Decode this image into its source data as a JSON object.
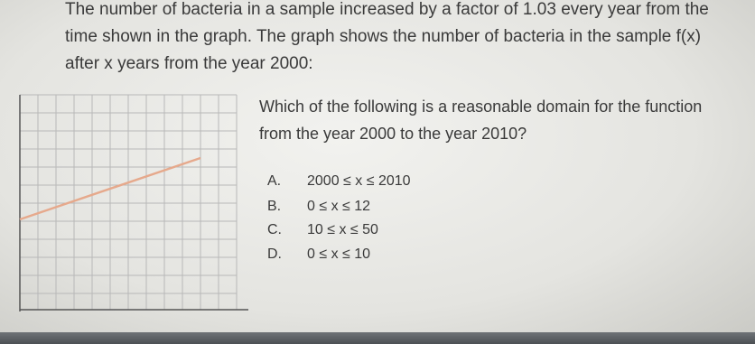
{
  "intro": [
    "The number of bacteria in a sample increased by a factor of 1.03 every year from the",
    "time shown in the graph. The graph shows the number of bacteria in the sample f(x)",
    "after x years from the year 2000:"
  ],
  "question": [
    "Which of the following is a reasonable domain for the function",
    "from the year 2000 to the year 2010?"
  ],
  "options": [
    {
      "letter": "A.",
      "text": "2000 ≤ x ≤ 2010"
    },
    {
      "letter": "B.",
      "text": "0 ≤ x ≤ 12"
    },
    {
      "letter": "C.",
      "text": "10 ≤ x ≤ 50"
    },
    {
      "letter": "D.",
      "text": "0 ≤ x ≤ 10"
    }
  ]
}
